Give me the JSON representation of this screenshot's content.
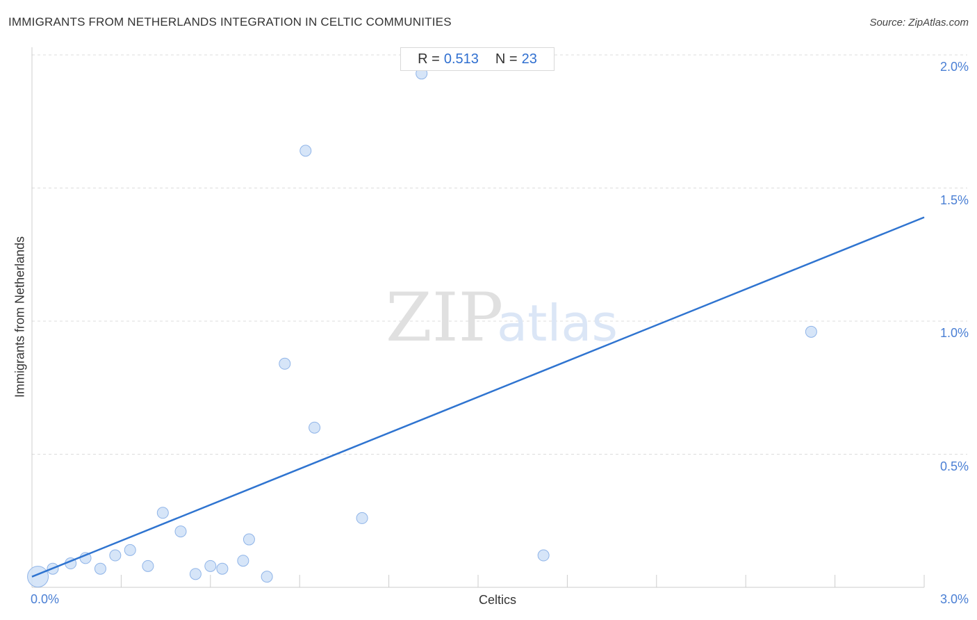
{
  "title": "IMMIGRANTS FROM NETHERLANDS INTEGRATION IN CELTIC COMMUNITIES",
  "source": "Source: ZipAtlas.com",
  "stats": {
    "r_label": "R =",
    "r_value": "0.513",
    "n_label": "N =",
    "n_value": "23"
  },
  "watermark": {
    "zip": "ZIP",
    "atlas": "atlas"
  },
  "colors": {
    "accent": "#2f74d0",
    "point_fill": "#cfe0f7",
    "point_stroke": "#8fb4e8",
    "tick_text": "#4a7fd4"
  },
  "chart_data": {
    "type": "scatter",
    "title": "IMMIGRANTS FROM NETHERLANDS INTEGRATION IN CELTIC COMMUNITIES",
    "xlabel": "Celtics",
    "ylabel": "Immigrants from Netherlands",
    "xlim": [
      0,
      3.0
    ],
    "ylim": [
      0,
      2.0
    ],
    "x_tick_labels": [
      "0.0%",
      "3.0%"
    ],
    "y_ticks": [
      {
        "value": 0.5,
        "label": "0.5%"
      },
      {
        "value": 1.0,
        "label": "1.0%"
      },
      {
        "value": 1.5,
        "label": "1.5%"
      },
      {
        "value": 2.0,
        "label": "2.0%"
      }
    ],
    "grid": "horizontal dashed",
    "points": [
      {
        "x": 0.02,
        "y": 0.04,
        "big": true
      },
      {
        "x": 0.07,
        "y": 0.07
      },
      {
        "x": 0.13,
        "y": 0.09
      },
      {
        "x": 0.18,
        "y": 0.11
      },
      {
        "x": 0.23,
        "y": 0.07
      },
      {
        "x": 0.28,
        "y": 0.12
      },
      {
        "x": 0.33,
        "y": 0.14
      },
      {
        "x": 0.39,
        "y": 0.08
      },
      {
        "x": 0.44,
        "y": 0.28
      },
      {
        "x": 0.5,
        "y": 0.21
      },
      {
        "x": 0.55,
        "y": 0.05
      },
      {
        "x": 0.6,
        "y": 0.08
      },
      {
        "x": 0.64,
        "y": 0.07
      },
      {
        "x": 0.71,
        "y": 0.1
      },
      {
        "x": 0.73,
        "y": 0.18
      },
      {
        "x": 0.79,
        "y": 0.04
      },
      {
        "x": 0.85,
        "y": 0.84
      },
      {
        "x": 0.92,
        "y": 1.64
      },
      {
        "x": 0.95,
        "y": 0.6
      },
      {
        "x": 1.11,
        "y": 0.26
      },
      {
        "x": 1.31,
        "y": 1.93
      },
      {
        "x": 1.72,
        "y": 0.12
      },
      {
        "x": 2.62,
        "y": 0.96
      }
    ],
    "trendline": {
      "x": [
        0.0,
        3.0
      ],
      "y": [
        0.04,
        1.39
      ]
    }
  }
}
